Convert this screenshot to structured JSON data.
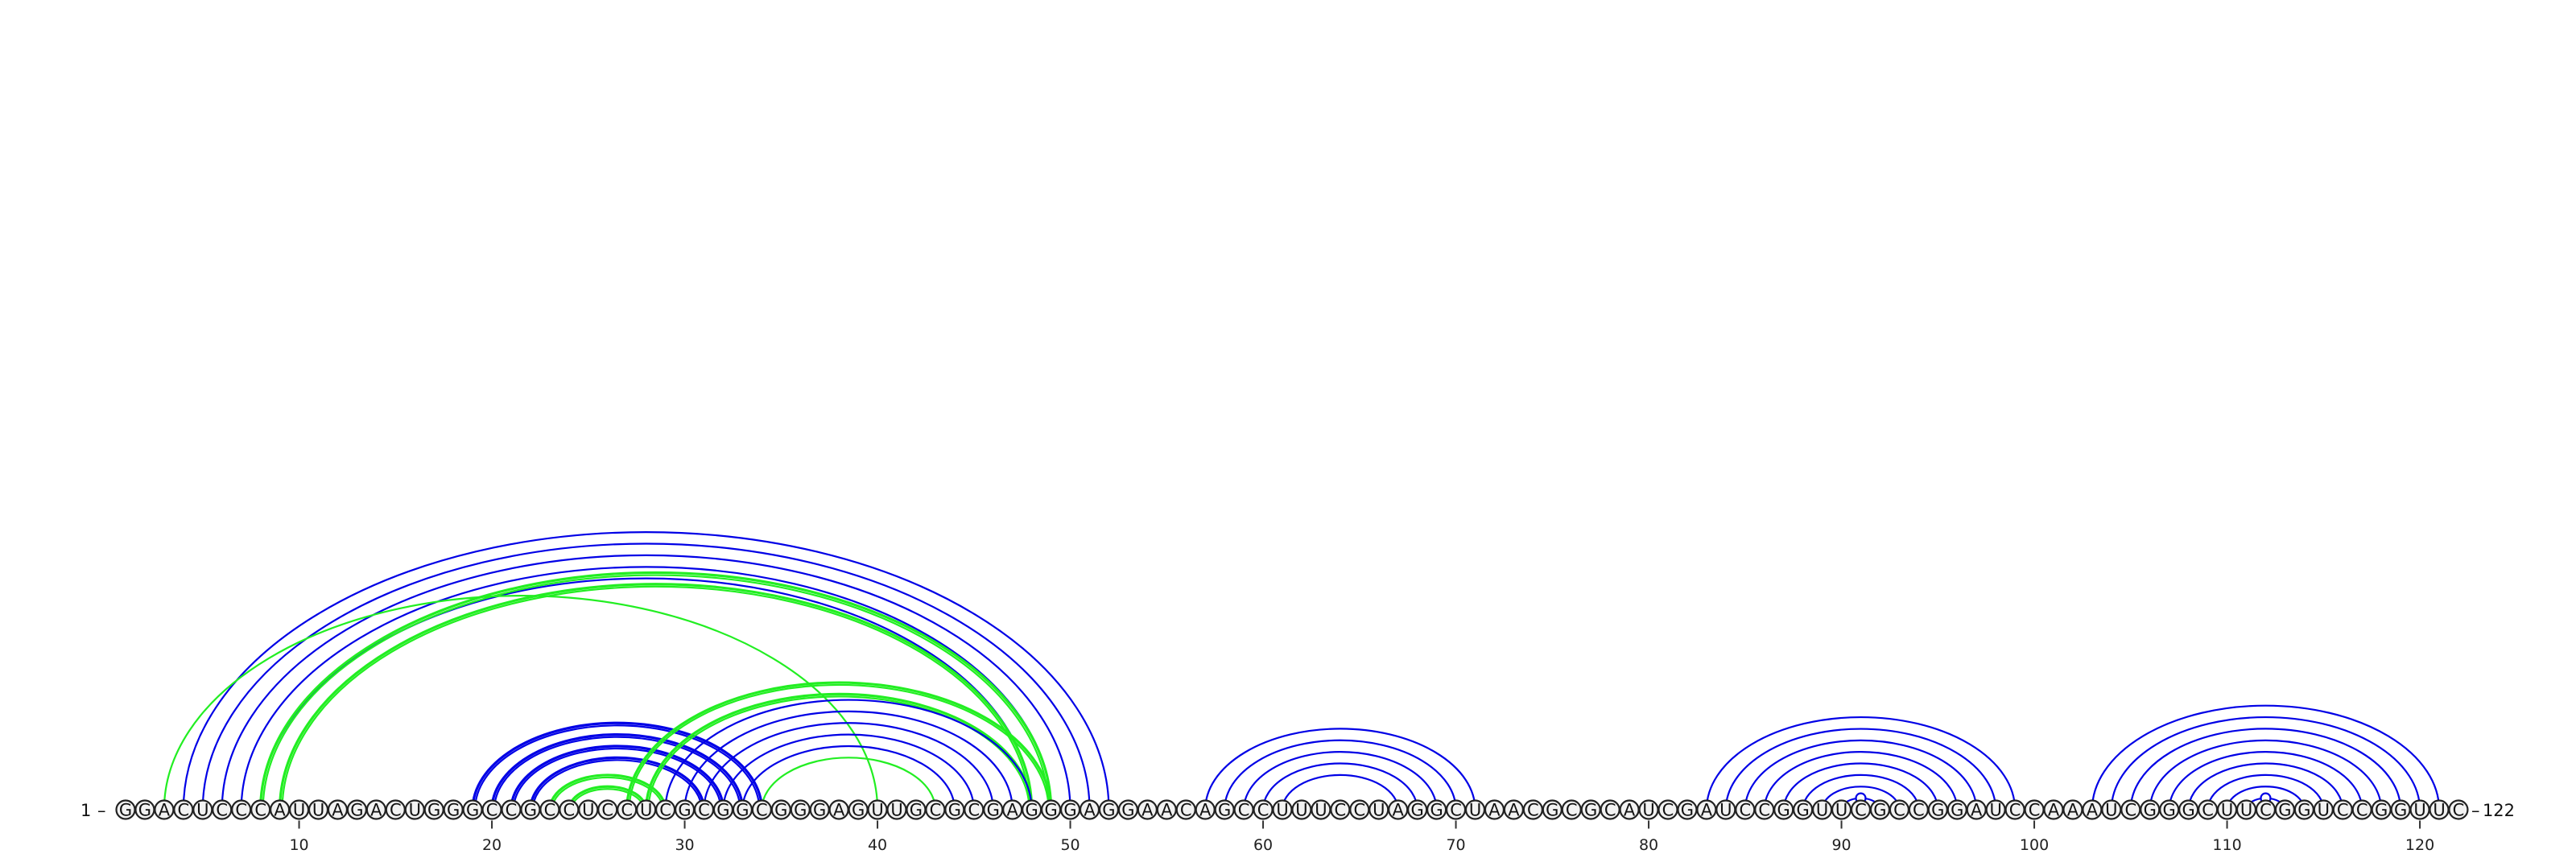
{
  "chart_data": {
    "type": "arc-diagram",
    "sequence": "GGACUCCCAUUAGACUGGGCCGCCUCCUCGCGGCGGGAGUUGCGCGAGGGAGGAACAGCCUUUCCUAGGCUAACGCGCAUCGAUCCGGUUCGCCGGAUCCAAAUCGGGCUUCGGUCCGGUUC",
    "start_label": "1",
    "end_label": "122",
    "length": 122,
    "ticks": [
      "10",
      "20",
      "30",
      "40",
      "50",
      "60",
      "70",
      "80",
      "90",
      "100",
      "110",
      "120"
    ],
    "colors": {
      "blue": "#0000e6",
      "green": "#22ee22"
    },
    "arc_groups": [
      {
        "color": "blue",
        "style": "thin",
        "pairs": [
          [
            4,
            52
          ],
          [
            5,
            51
          ],
          [
            6,
            50
          ],
          [
            7,
            49
          ],
          [
            8,
            48
          ]
        ]
      },
      {
        "color": "green",
        "style": "thick",
        "pairs": [
          [
            8,
            49
          ],
          [
            9,
            48
          ]
        ]
      },
      {
        "color": "green",
        "style": "thin",
        "pairs": [
          [
            3,
            40
          ]
        ]
      },
      {
        "color": "blue",
        "style": "thick",
        "pairs": [
          [
            19,
            34
          ],
          [
            20,
            33
          ],
          [
            21,
            32
          ],
          [
            22,
            31
          ]
        ]
      },
      {
        "color": "green",
        "style": "thick",
        "pairs": [
          [
            23,
            29
          ],
          [
            24,
            28
          ]
        ]
      },
      {
        "color": "green",
        "style": "thick",
        "pairs": [
          [
            27,
            49
          ],
          [
            28,
            48
          ]
        ]
      },
      {
        "color": "green",
        "style": "thin",
        "pairs": [
          [
            34,
            43
          ]
        ]
      },
      {
        "color": "blue",
        "style": "thin",
        "pairs": [
          [
            29,
            48
          ],
          [
            30,
            47
          ],
          [
            31,
            46
          ],
          [
            32,
            45
          ],
          [
            33,
            44
          ]
        ]
      },
      {
        "color": "blue",
        "style": "thin",
        "pairs": [
          [
            57,
            71
          ],
          [
            58,
            70
          ],
          [
            59,
            69
          ],
          [
            60,
            68
          ],
          [
            61,
            67
          ]
        ]
      },
      {
        "color": "blue",
        "style": "thin",
        "pairs": [
          [
            83,
            99
          ],
          [
            84,
            98
          ],
          [
            85,
            97
          ],
          [
            86,
            96
          ],
          [
            87,
            95
          ],
          [
            88,
            94
          ],
          [
            89,
            93
          ],
          [
            90,
            92
          ]
        ]
      },
      {
        "color": "blue",
        "style": "thin",
        "pairs": [
          [
            103,
            121
          ],
          [
            104,
            120
          ],
          [
            105,
            119
          ],
          [
            106,
            118
          ],
          [
            107,
            117
          ],
          [
            108,
            116
          ],
          [
            109,
            115
          ],
          [
            110,
            114
          ],
          [
            111,
            113
          ]
        ]
      }
    ]
  }
}
